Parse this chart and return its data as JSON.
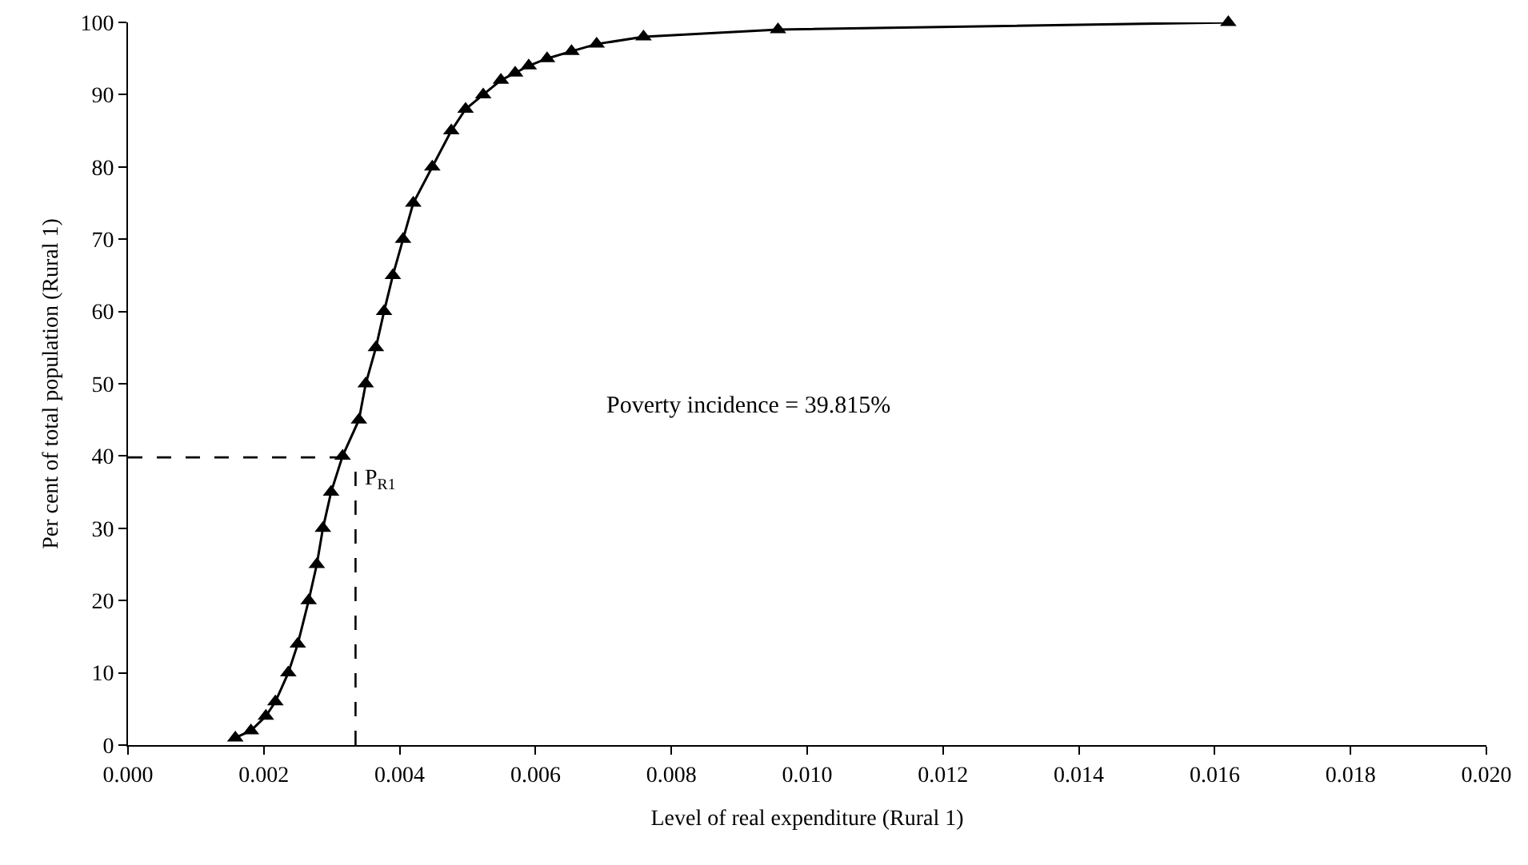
{
  "chart_data": {
    "type": "line",
    "xlabel": "Level of real expenditure (Rural 1)",
    "ylabel": "Per cent of total population (Rural 1)",
    "series": [
      {
        "color": "#000000",
        "x": [
          0.00158,
          0.00181,
          0.00203,
          0.00217,
          0.00236,
          0.0025,
          0.00266,
          0.00278,
          0.00287,
          0.00299,
          0.00316,
          0.0034,
          0.0035,
          0.00365,
          0.00377,
          0.0039,
          0.00405,
          0.0042,
          0.00448,
          0.00476,
          0.00497,
          0.00523,
          0.00549,
          0.0057,
          0.0059,
          0.00617,
          0.00653,
          0.0069,
          0.00759,
          0.00957,
          0.0162
        ],
        "values": [
          1,
          2,
          4,
          6,
          10,
          14,
          20,
          25,
          30,
          35,
          40,
          45,
          50,
          55,
          60,
          65,
          70,
          75,
          80,
          85,
          88,
          90,
          92,
          93,
          94,
          95,
          96,
          97,
          98,
          99,
          100
        ]
      }
    ],
    "xlim": [
      0,
      0.02
    ],
    "xticks": [
      {
        "value": 0,
        "label": "0.000"
      },
      {
        "value": 0.002,
        "label": "0.002"
      },
      {
        "value": 0.004,
        "label": "0.004"
      },
      {
        "value": 0.006,
        "label": "0.006"
      },
      {
        "value": 0.008,
        "label": "0.008"
      },
      {
        "value": 0.01,
        "label": "0.010"
      },
      {
        "value": 0.012,
        "label": "0.012"
      },
      {
        "value": 0.014,
        "label": "0.014"
      },
      {
        "value": 0.016,
        "label": "0.016"
      },
      {
        "value": 0.018,
        "label": "0.018"
      },
      {
        "value": 0.02,
        "label": "0.020"
      }
    ],
    "ylim": [
      0,
      100
    ],
    "yticks": [
      0,
      10,
      20,
      30,
      40,
      50,
      60,
      70,
      80,
      90,
      100
    ],
    "ref_lines": [
      {
        "axis": "y",
        "value": 39.815,
        "line_style": "dashed",
        "color": "#000000"
      },
      {
        "axis": "x",
        "value": 0.00335,
        "line_style": "dashed",
        "color": "#000000"
      }
    ],
    "annotations": [
      {
        "text": "P$_{R1}$",
        "x": 0.00335,
        "y": 39.815
      },
      "Poverty incidence = 39.815%"
    ],
    "marker": "triangle",
    "line_style": "solid",
    "grid": false,
    "legend": false
  }
}
